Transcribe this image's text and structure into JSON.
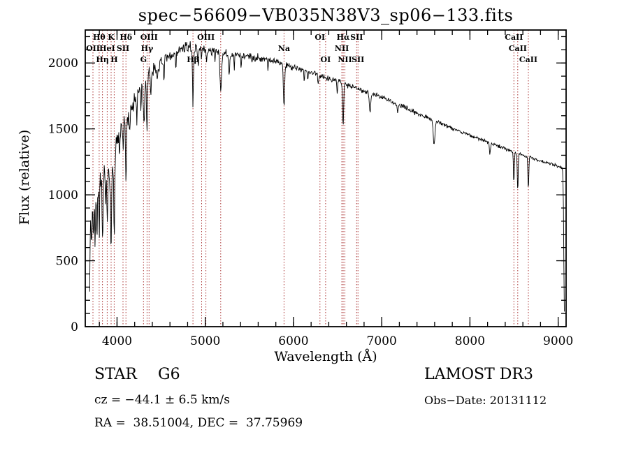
{
  "title": "spec−56609−VB035N38V3_sp06−133.fits",
  "footer": {
    "object_type": "STAR",
    "subclass": "G6",
    "survey": "LAMOST DR3",
    "cz_line": "cz = −44.1 ± 6.5 km/s",
    "obs_date_line": "Obs−Date: 20131112",
    "coords_line": "RA =  38.51004, DEC =  37.75969"
  },
  "chart_data": {
    "type": "line",
    "title": "spec−56609−VB035N38V3_sp06−133.fits",
    "xlabel": "Wavelength (Å)",
    "ylabel": "Flux (relative)",
    "xlim": [
      3640,
      9090
    ],
    "ylim": [
      0,
      2250
    ],
    "x_ticks": [
      4000,
      5000,
      6000,
      7000,
      8000,
      9000
    ],
    "y_ticks": [
      0,
      500,
      1000,
      1500,
      2000
    ],
    "x_minor_step": 200,
    "y_minor_step": 100,
    "grid": false,
    "legend": "none",
    "line_color": "#000000",
    "marker_line_color": "#aa3333",
    "noise_seed": 7,
    "sample_step": 5,
    "x_start": 3690,
    "x_end": 9070,
    "spectral_lines": [
      {
        "label": "OII",
        "wavelength": 3727,
        "row": 2
      },
      {
        "label": "Hθ",
        "wavelength": 3798,
        "row": 1
      },
      {
        "label": "Hη",
        "wavelength": 3835,
        "row": 3
      },
      {
        "label": "HeI",
        "wavelength": 3889,
        "row": 2
      },
      {
        "label": "K",
        "wavelength": 3933,
        "row": 1
      },
      {
        "label": "H",
        "wavelength": 3968,
        "row": 3
      },
      {
        "label": "SII",
        "wavelength": 4068,
        "row": 2
      },
      {
        "label": "Hδ",
        "wavelength": 4101,
        "row": 1
      },
      {
        "label": "G",
        "wavelength": 4300,
        "row": 3
      },
      {
        "label": "Hγ",
        "wavelength": 4340,
        "row": 2
      },
      {
        "label": "OIII",
        "wavelength": 4363,
        "row": 1
      },
      {
        "label": "Hβ",
        "wavelength": 4861,
        "row": 3
      },
      {
        "label": "",
        "wavelength": 4959,
        "row": 1
      },
      {
        "label": "OIII",
        "wavelength": 5007,
        "row": 1
      },
      {
        "label": "",
        "wavelength": 5175,
        "row": 2
      },
      {
        "label": "Na",
        "wavelength": 5893,
        "row": 2
      },
      {
        "label": "OI",
        "wavelength": 6300,
        "row": 1
      },
      {
        "label": "OI",
        "wavelength": 6364,
        "row": 3
      },
      {
        "label": "NII",
        "wavelength": 6548,
        "row": 2
      },
      {
        "label": "Hα",
        "wavelength": 6563,
        "row": 1
      },
      {
        "label": "NII",
        "wavelength": 6583,
        "row": 3
      },
      {
        "label": "SII",
        "wavelength": 6716,
        "row": 1
      },
      {
        "label": "SII",
        "wavelength": 6731,
        "row": 3
      },
      {
        "label": "CaII",
        "wavelength": 8498,
        "row": 1
      },
      {
        "label": "CaII",
        "wavelength": 8542,
        "row": 2
      },
      {
        "label": "CaII",
        "wavelength": 8662,
        "row": 3
      }
    ],
    "continuum": [
      [
        3690,
        320
      ],
      [
        3700,
        850
      ],
      [
        3720,
        950
      ],
      [
        3740,
        1020
      ],
      [
        3760,
        1060
      ],
      [
        3790,
        1060
      ],
      [
        3820,
        1080
      ],
      [
        3850,
        1130
      ],
      [
        3880,
        1170
      ],
      [
        3910,
        1200
      ],
      [
        3940,
        1230
      ],
      [
        3970,
        1270
      ],
      [
        4000,
        1400
      ],
      [
        4050,
        1500
      ],
      [
        4100,
        1560
      ],
      [
        4150,
        1640
      ],
      [
        4200,
        1720
      ],
      [
        4250,
        1790
      ],
      [
        4300,
        1840
      ],
      [
        4350,
        1900
      ],
      [
        4400,
        1940
      ],
      [
        4450,
        1970
      ],
      [
        4500,
        1990
      ],
      [
        4550,
        2020
      ],
      [
        4600,
        2040
      ],
      [
        4650,
        2070
      ],
      [
        4700,
        2090
      ],
      [
        4750,
        2110
      ],
      [
        4800,
        2120
      ],
      [
        4850,
        2120
      ],
      [
        4900,
        2110
      ],
      [
        4950,
        2110
      ],
      [
        5000,
        2100
      ],
      [
        5100,
        2090
      ],
      [
        5200,
        2070
      ],
      [
        5300,
        2060
      ],
      [
        5400,
        2060
      ],
      [
        5500,
        2050
      ],
      [
        5600,
        2040
      ],
      [
        5700,
        2030
      ],
      [
        5800,
        2010
      ],
      [
        5900,
        1990
      ],
      [
        6000,
        1970
      ],
      [
        6100,
        1950
      ],
      [
        6200,
        1930
      ],
      [
        6300,
        1905
      ],
      [
        6400,
        1885
      ],
      [
        6500,
        1865
      ],
      [
        6600,
        1840
      ],
      [
        6700,
        1815
      ],
      [
        6800,
        1790
      ],
      [
        6900,
        1765
      ],
      [
        7000,
        1740
      ],
      [
        7100,
        1710
      ],
      [
        7200,
        1680
      ],
      [
        7300,
        1650
      ],
      [
        7400,
        1620
      ],
      [
        7500,
        1592
      ],
      [
        7600,
        1565
      ],
      [
        7700,
        1535
      ],
      [
        7800,
        1505
      ],
      [
        7900,
        1478
      ],
      [
        8000,
        1452
      ],
      [
        8100,
        1425
      ],
      [
        8200,
        1400
      ],
      [
        8300,
        1375
      ],
      [
        8400,
        1350
      ],
      [
        8500,
        1325
      ],
      [
        8600,
        1300
      ],
      [
        8700,
        1278
      ],
      [
        8800,
        1258
      ],
      [
        8900,
        1238
      ],
      [
        9000,
        1218
      ],
      [
        9040,
        1205
      ],
      [
        9052,
        1185
      ],
      [
        9060,
        900
      ],
      [
        9066,
        400
      ],
      [
        9070,
        120
      ]
    ],
    "absorption_features": [
      {
        "wavelength": 3712,
        "depth": 260,
        "width": 5
      },
      {
        "wavelength": 3734,
        "depth": 300,
        "width": 5
      },
      {
        "wavelength": 3750,
        "depth": 380,
        "width": 5
      },
      {
        "wavelength": 3771,
        "depth": 360,
        "width": 5
      },
      {
        "wavelength": 3798,
        "depth": 400,
        "width": 5
      },
      {
        "wavelength": 3835,
        "depth": 470,
        "width": 5
      },
      {
        "wavelength": 3869,
        "depth": 250,
        "width": 4
      },
      {
        "wavelength": 3889,
        "depth": 480,
        "width": 5
      },
      {
        "wavelength": 3933,
        "depth": 620,
        "width": 6
      },
      {
        "wavelength": 3968,
        "depth": 560,
        "width": 6
      },
      {
        "wavelength": 4030,
        "depth": 220,
        "width": 4
      },
      {
        "wavelength": 4068,
        "depth": 180,
        "width": 4
      },
      {
        "wavelength": 4101,
        "depth": 420,
        "width": 6
      },
      {
        "wavelength": 4144,
        "depth": 160,
        "width": 4
      },
      {
        "wavelength": 4226,
        "depth": 230,
        "width": 4
      },
      {
        "wavelength": 4271,
        "depth": 160,
        "width": 4
      },
      {
        "wavelength": 4305,
        "depth": 300,
        "width": 7
      },
      {
        "wavelength": 4340,
        "depth": 380,
        "width": 6
      },
      {
        "wavelength": 4383,
        "depth": 200,
        "width": 4
      },
      {
        "wavelength": 4455,
        "depth": 130,
        "width": 4
      },
      {
        "wavelength": 4531,
        "depth": 120,
        "width": 4
      },
      {
        "wavelength": 4668,
        "depth": 110,
        "width": 4
      },
      {
        "wavelength": 4861,
        "depth": 420,
        "width": 6
      },
      {
        "wavelength": 4920,
        "depth": 130,
        "width": 4
      },
      {
        "wavelength": 4957,
        "depth": 110,
        "width": 4
      },
      {
        "wavelength": 5015,
        "depth": 100,
        "width": 4
      },
      {
        "wavelength": 5110,
        "depth": 90,
        "width": 4
      },
      {
        "wavelength": 5175,
        "depth": 280,
        "width": 9
      },
      {
        "wavelength": 5270,
        "depth": 170,
        "width": 6
      },
      {
        "wavelength": 5328,
        "depth": 110,
        "width": 4
      },
      {
        "wavelength": 5406,
        "depth": 90,
        "width": 4
      },
      {
        "wavelength": 5530,
        "depth": 70,
        "width": 4
      },
      {
        "wavelength": 5710,
        "depth": 70,
        "width": 4
      },
      {
        "wavelength": 5893,
        "depth": 320,
        "width": 7
      },
      {
        "wavelength": 6122,
        "depth": 90,
        "width": 4
      },
      {
        "wavelength": 6162,
        "depth": 80,
        "width": 4
      },
      {
        "wavelength": 6280,
        "depth": 70,
        "width": 5
      },
      {
        "wavelength": 6495,
        "depth": 100,
        "width": 5
      },
      {
        "wavelength": 6563,
        "depth": 330,
        "width": 6
      },
      {
        "wavelength": 6867,
        "depth": 150,
        "width": 8
      },
      {
        "wavelength": 7180,
        "depth": 70,
        "width": 6
      },
      {
        "wavelength": 7594,
        "depth": 180,
        "width": 10
      },
      {
        "wavelength": 8227,
        "depth": 80,
        "width": 6
      },
      {
        "wavelength": 8498,
        "depth": 230,
        "width": 5
      },
      {
        "wavelength": 8542,
        "depth": 270,
        "width": 5
      },
      {
        "wavelength": 8662,
        "depth": 250,
        "width": 5
      }
    ],
    "noise_profile": [
      [
        3690,
        120
      ],
      [
        3800,
        115
      ],
      [
        3900,
        105
      ],
      [
        4000,
        88
      ],
      [
        4200,
        70
      ],
      [
        4400,
        55
      ],
      [
        4700,
        42
      ],
      [
        5000,
        36
      ],
      [
        5400,
        30
      ],
      [
        5800,
        27
      ],
      [
        6200,
        24
      ],
      [
        6600,
        21
      ],
      [
        7000,
        18
      ],
      [
        7500,
        16
      ],
      [
        8000,
        14
      ],
      [
        8500,
        13
      ],
      [
        9000,
        11
      ],
      [
        9070,
        10
      ]
    ]
  }
}
